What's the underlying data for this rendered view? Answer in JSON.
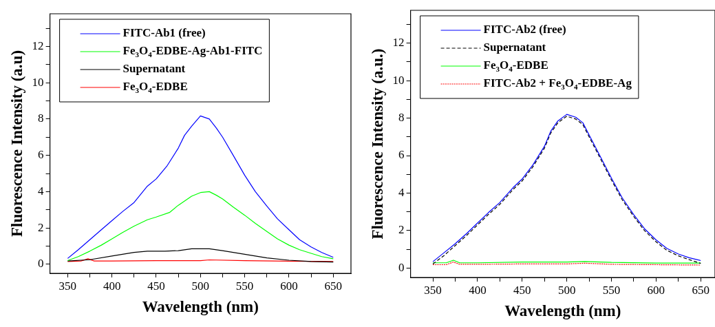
{
  "chart_data": [
    {
      "type": "line",
      "xlabel": "Wavelength (nm)",
      "ylabel": "Fluorescence Intensity (a.u)",
      "legend": "top left",
      "grid": false,
      "xlim": [
        330,
        670
      ],
      "xticks": [
        350,
        {
          "value": 375,
          "label": null
        },
        400,
        {
          "value": 425,
          "label": null
        },
        450,
        {
          "value": 475,
          "label": null
        },
        500,
        {
          "value": 525,
          "label": null
        },
        550,
        {
          "value": 575,
          "label": null
        },
        600,
        {
          "value": 625,
          "label": null
        },
        650
      ],
      "ylim": [
        -0.5,
        13.8
      ],
      "yticks": [
        0,
        {
          "value": 1,
          "label": null
        },
        2,
        {
          "value": 3,
          "label": null
        },
        4,
        {
          "value": 5,
          "label": null
        },
        6,
        {
          "value": 7,
          "label": null
        },
        8,
        {
          "value": 9,
          "label": null
        },
        10,
        {
          "value": 11,
          "label": null
        },
        12,
        {
          "value": 13,
          "label": null
        }
      ],
      "series": [
        {
          "name": "FITC-Ab1 (free)",
          "color": "#0000ff",
          "line_style": "solid",
          "x": [
            350,
            362,
            375,
            388,
            400,
            412,
            425,
            440,
            450,
            462,
            475,
            482,
            490,
            500,
            510,
            518,
            525,
            537,
            550,
            562,
            575,
            587,
            600,
            612,
            625,
            637,
            650
          ],
          "values": [
            0.32,
            0.8,
            1.35,
            1.9,
            2.4,
            2.9,
            3.4,
            4.3,
            4.7,
            5.4,
            6.4,
            7.1,
            7.6,
            8.17,
            8.0,
            7.5,
            7.0,
            6.0,
            4.9,
            4.0,
            3.2,
            2.5,
            1.9,
            1.35,
            0.95,
            0.65,
            0.38
          ]
        },
        {
          "name": "Fe$_{3}$O$_{4}$-EDBE-Ag-Ab1-FITC",
          "color": "#00ff00",
          "line_style": "solid",
          "x": [
            350,
            362,
            375,
            388,
            400,
            412,
            425,
            440,
            450,
            465,
            475,
            490,
            500,
            510,
            518,
            525,
            537,
            550,
            562,
            575,
            587,
            600,
            612,
            625,
            637,
            650
          ],
          "values": [
            0.2,
            0.42,
            0.72,
            1.05,
            1.4,
            1.75,
            2.1,
            2.45,
            2.6,
            2.85,
            3.25,
            3.75,
            3.95,
            4.0,
            3.8,
            3.6,
            3.15,
            2.7,
            2.25,
            1.8,
            1.4,
            1.05,
            0.8,
            0.6,
            0.42,
            0.3
          ]
        },
        {
          "name": "Supernatant",
          "color": "#000000",
          "line_style": "solid",
          "x": [
            350,
            375,
            400,
            425,
            440,
            460,
            475,
            490,
            500,
            510,
            525,
            550,
            575,
            600,
            625,
            650
          ],
          "values": [
            0.18,
            0.25,
            0.45,
            0.65,
            0.72,
            0.72,
            0.75,
            0.85,
            0.85,
            0.85,
            0.75,
            0.55,
            0.35,
            0.22,
            0.15,
            0.12
          ]
        },
        {
          "name": "Fe$_{3}$O$_{4}$-EDBE",
          "color": "#ff0000",
          "line_style": "solid",
          "x": [
            350,
            365,
            373,
            380,
            400,
            450,
            500,
            510,
            550,
            600,
            650
          ],
          "values": [
            0.15,
            0.18,
            0.3,
            0.18,
            0.18,
            0.2,
            0.2,
            0.24,
            0.2,
            0.17,
            0.15
          ]
        }
      ]
    },
    {
      "type": "line",
      "xlabel": "Wavelength (nm)",
      "ylabel": "Fluorescence Intensity (a.u.)",
      "legend": "top left",
      "grid": false,
      "xlim": [
        325,
        666
      ],
      "xticks": [
        350,
        {
          "value": 375,
          "label": null
        },
        400,
        {
          "value": 425,
          "label": null
        },
        450,
        {
          "value": 475,
          "label": null
        },
        500,
        {
          "value": 525,
          "label": null
        },
        550,
        {
          "value": 575,
          "label": null
        },
        600,
        {
          "value": 625,
          "label": null
        },
        650
      ],
      "ylim": [
        -0.5,
        13.75
      ],
      "yticks": [
        0,
        {
          "value": 1,
          "label": null
        },
        2,
        {
          "value": 3,
          "label": null
        },
        4,
        {
          "value": 5,
          "label": null
        },
        6,
        {
          "value": 7,
          "label": null
        },
        8,
        {
          "value": 9,
          "label": null
        },
        10,
        {
          "value": 11,
          "label": null
        },
        12,
        {
          "value": 13,
          "label": null
        }
      ],
      "series": [
        {
          "name": "FITC-Ab2 (free)",
          "color": "#0000ff",
          "line_style": "solid",
          "x": [
            350,
            362,
            375,
            388,
            400,
            412,
            425,
            440,
            450,
            462,
            475,
            482,
            490,
            500,
            510,
            518,
            525,
            537,
            550,
            562,
            575,
            587,
            600,
            612,
            625,
            637,
            650
          ],
          "values": [
            0.34,
            0.8,
            1.3,
            1.85,
            2.4,
            2.95,
            3.5,
            4.3,
            4.75,
            5.5,
            6.5,
            7.3,
            7.85,
            8.2,
            8.05,
            7.75,
            7.1,
            6.0,
            4.8,
            3.75,
            2.85,
            2.1,
            1.5,
            1.05,
            0.75,
            0.55,
            0.4
          ]
        },
        {
          "name": "Supernatant",
          "color": "#000000",
          "line_style": "dashed",
          "x": [
            350,
            362,
            375,
            388,
            400,
            412,
            425,
            440,
            450,
            462,
            475,
            482,
            490,
            500,
            510,
            518,
            525,
            537,
            550,
            562,
            575,
            587,
            600,
            612,
            625,
            637,
            650
          ],
          "values": [
            0.22,
            0.65,
            1.2,
            1.75,
            2.3,
            2.85,
            3.4,
            4.2,
            4.65,
            5.4,
            6.4,
            7.2,
            7.75,
            8.1,
            7.95,
            7.65,
            7.0,
            5.9,
            4.7,
            3.65,
            2.75,
            2.0,
            1.4,
            0.95,
            0.65,
            0.45,
            0.25
          ]
        },
        {
          "name": "Fe$_{3}$O$_{4}$-EDBE",
          "color": "#00ff00",
          "line_style": "solid",
          "x": [
            350,
            365,
            373,
            380,
            400,
            450,
            500,
            520,
            550,
            600,
            650
          ],
          "values": [
            0.28,
            0.28,
            0.42,
            0.28,
            0.28,
            0.32,
            0.32,
            0.35,
            0.3,
            0.27,
            0.27
          ]
        },
        {
          "name": "FITC-Ab2 + Fe$_{3}$O$_{4}$-EDBE-Ag",
          "color": "#ff0000",
          "line_style": "dotted",
          "x": [
            350,
            365,
            373,
            380,
            400,
            450,
            500,
            520,
            550,
            600,
            650
          ],
          "values": [
            0.18,
            0.18,
            0.32,
            0.2,
            0.2,
            0.22,
            0.22,
            0.26,
            0.2,
            0.18,
            0.16
          ]
        }
      ]
    }
  ]
}
